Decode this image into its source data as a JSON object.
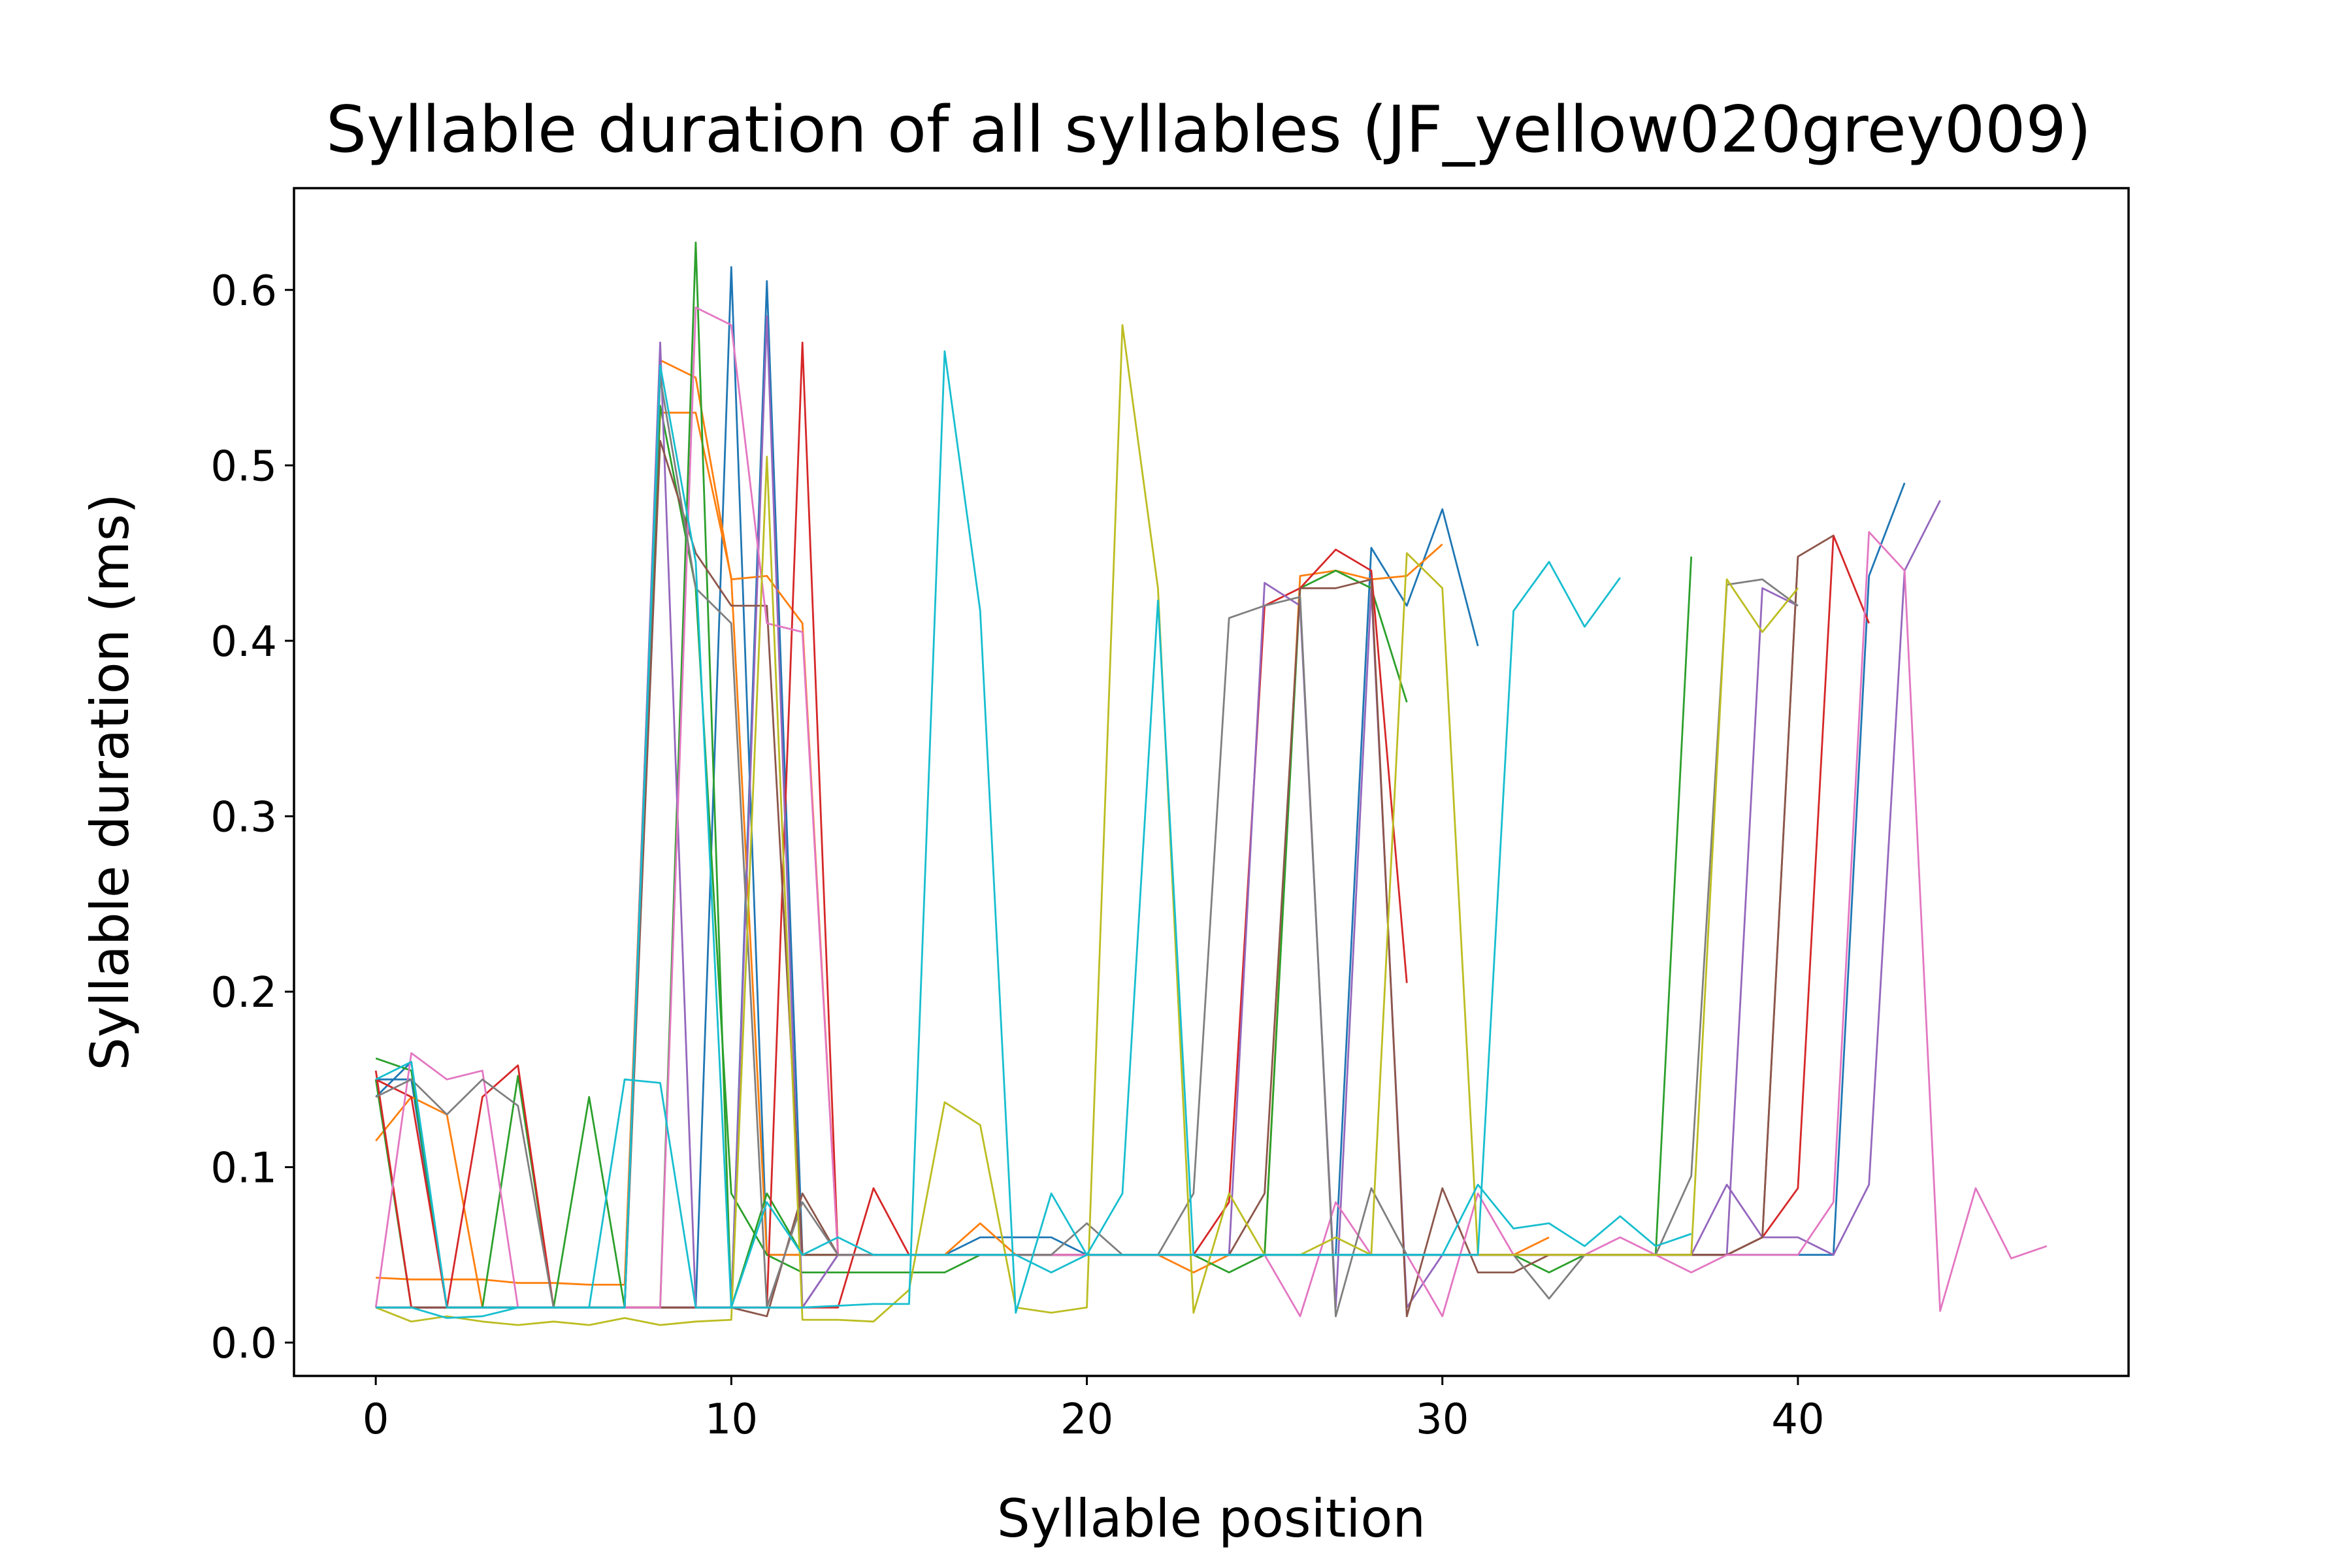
{
  "chart_data": {
    "type": "line",
    "title": "Syllable duration of all syllables (JF_yellow020grey009)",
    "xlabel": "Syllable position",
    "ylabel": "Syllable duration (ms)",
    "xlim": [
      -2.3,
      49.3
    ],
    "ylim": [
      -0.019,
      0.658
    ],
    "xticks": [
      0,
      10,
      20,
      30,
      40
    ],
    "yticks": [
      0.0,
      0.1,
      0.2,
      0.3,
      0.4,
      0.5,
      0.6
    ],
    "ytick_labels": [
      "0.0",
      "0.1",
      "0.2",
      "0.3",
      "0.4",
      "0.5",
      "0.6"
    ],
    "grid": false,
    "legend": false,
    "series": [
      {
        "color": "#1f77b4",
        "values": [
          0.15,
          0.15,
          0.02,
          0.02,
          0.02,
          0.02,
          0.02,
          0.02,
          0.02,
          0.02,
          0.613,
          0.05,
          0.05,
          0.05,
          0.05,
          0.05,
          0.05,
          0.06,
          0.06,
          0.06,
          0.05,
          0.05,
          0.05,
          0.05,
          0.05,
          0.05,
          0.05,
          0.05,
          0.453,
          0.42,
          0.475,
          0.397
        ]
      },
      {
        "color": "#1f77b4",
        "values": [
          0.14,
          0.16,
          0.02,
          0.02,
          0.02,
          0.02,
          0.02,
          0.02,
          0.02,
          0.02,
          0.02,
          0.605,
          0.05,
          0.05,
          0.05,
          0.05,
          0.05,
          0.05,
          0.05,
          0.05,
          0.05,
          0.05,
          0.05,
          0.05,
          0.05,
          0.05,
          0.05,
          0.05,
          0.05,
          0.05,
          0.05,
          0.05,
          0.05,
          0.05,
          0.05,
          0.05,
          0.05,
          0.05,
          0.05,
          0.05,
          0.05,
          0.05,
          0.437,
          0.49
        ]
      },
      {
        "color": "#ff7f0e",
        "values": [
          0.037,
          0.036,
          0.036,
          0.036,
          0.034,
          0.034,
          0.033,
          0.033,
          0.56,
          0.55,
          0.435,
          0.437,
          0.41,
          0.05,
          0.05,
          0.05,
          0.05,
          0.068,
          0.05,
          0.05,
          0.05,
          0.05,
          0.05,
          0.05,
          0.05,
          0.05,
          0.437,
          0.44,
          0.435,
          0.437,
          0.455
        ]
      },
      {
        "color": "#ff7f0e",
        "values": [
          0.115,
          0.14,
          0.13,
          0.02,
          0.02,
          0.02,
          0.02,
          0.02,
          0.53,
          0.53,
          0.436,
          0.05,
          0.05,
          0.05,
          0.05,
          0.05,
          0.05,
          0.05,
          0.05,
          0.05,
          0.05,
          0.05,
          0.05,
          0.04,
          0.05,
          0.05,
          0.05,
          0.05,
          0.05,
          0.05,
          0.05,
          0.05,
          0.05,
          0.06
        ]
      },
      {
        "color": "#2ca02c",
        "values": [
          0.162,
          0.155,
          0.02,
          0.02,
          0.02,
          0.02,
          0.14,
          0.02,
          0.534,
          0.43,
          0.085,
          0.05,
          0.04,
          0.04,
          0.04,
          0.04,
          0.04,
          0.05,
          0.05,
          0.05,
          0.05,
          0.05,
          0.05,
          0.05,
          0.04,
          0.05,
          0.43,
          0.44,
          0.43,
          0.365
        ]
      },
      {
        "color": "#2ca02c",
        "values": [
          0.15,
          0.02,
          0.02,
          0.02,
          0.152,
          0.02,
          0.02,
          0.02,
          0.02,
          0.627,
          0.02,
          0.085,
          0.05,
          0.05,
          0.05,
          0.05,
          0.05,
          0.05,
          0.05,
          0.05,
          0.05,
          0.05,
          0.05,
          0.05,
          0.05,
          0.05,
          0.05,
          0.05,
          0.05,
          0.05,
          0.05,
          0.05,
          0.05,
          0.04,
          0.05,
          0.05,
          0.05,
          0.448
        ]
      },
      {
        "color": "#d62728",
        "values": [
          0.155,
          0.02,
          0.02,
          0.14,
          0.158,
          0.02,
          0.02,
          0.02,
          0.02,
          0.02,
          0.02,
          0.02,
          0.57,
          0.05,
          0.05,
          0.05,
          0.05,
          0.05,
          0.05,
          0.05,
          0.05,
          0.05,
          0.05,
          0.05,
          0.08,
          0.42,
          0.43,
          0.452,
          0.44,
          0.205
        ]
      },
      {
        "color": "#d62728",
        "values": [
          0.15,
          0.14,
          0.02,
          0.02,
          0.02,
          0.02,
          0.02,
          0.02,
          0.02,
          0.02,
          0.02,
          0.02,
          0.02,
          0.02,
          0.088,
          0.05,
          0.05,
          0.05,
          0.05,
          0.05,
          0.05,
          0.05,
          0.05,
          0.05,
          0.05,
          0.05,
          0.05,
          0.05,
          0.05,
          0.05,
          0.05,
          0.05,
          0.05,
          0.05,
          0.05,
          0.05,
          0.05,
          0.05,
          0.05,
          0.06,
          0.088,
          0.46,
          0.41
        ]
      },
      {
        "color": "#9467bd",
        "values": [
          0.02,
          0.02,
          0.02,
          0.02,
          0.02,
          0.02,
          0.02,
          0.02,
          0.57,
          0.02,
          0.02,
          0.585,
          0.02,
          0.05,
          0.05,
          0.05,
          0.05,
          0.05,
          0.05,
          0.05,
          0.05,
          0.05,
          0.05,
          0.05,
          0.05,
          0.433,
          0.42,
          0.02,
          0.43,
          0.02,
          0.05,
          0.05,
          0.05,
          0.05,
          0.05,
          0.05,
          0.05,
          0.05,
          0.05,
          0.43,
          0.42
        ]
      },
      {
        "color": "#9467bd",
        "values": [
          0.02,
          0.02,
          0.02,
          0.02,
          0.02,
          0.02,
          0.02,
          0.02,
          0.02,
          0.02,
          0.02,
          0.02,
          0.02,
          0.05,
          0.05,
          0.05,
          0.05,
          0.05,
          0.05,
          0.05,
          0.05,
          0.05,
          0.05,
          0.05,
          0.05,
          0.05,
          0.05,
          0.05,
          0.05,
          0.05,
          0.05,
          0.05,
          0.05,
          0.05,
          0.05,
          0.05,
          0.05,
          0.05,
          0.09,
          0.06,
          0.06,
          0.05,
          0.09,
          0.44,
          0.48
        ]
      },
      {
        "color": "#8c564b",
        "values": [
          0.02,
          0.02,
          0.02,
          0.02,
          0.02,
          0.02,
          0.02,
          0.02,
          0.514,
          0.45,
          0.42,
          0.42,
          0.05,
          0.05,
          0.05,
          0.05,
          0.05,
          0.05,
          0.05,
          0.05,
          0.05,
          0.05,
          0.05,
          0.05,
          0.05,
          0.085,
          0.43,
          0.43,
          0.435,
          0.015,
          0.088,
          0.04,
          0.04,
          0.05,
          0.05,
          0.05,
          0.05,
          0.05,
          0.05,
          0.06,
          0.448,
          0.46
        ]
      },
      {
        "color": "#8c564b",
        "values": [
          0.02,
          0.02,
          0.02,
          0.02,
          0.02,
          0.02,
          0.02,
          0.02,
          0.02,
          0.02,
          0.02,
          0.015,
          0.085,
          0.05,
          0.05,
          0.05,
          0.05,
          0.05,
          0.05,
          0.05,
          0.05,
          0.05,
          0.05,
          0.05,
          0.05,
          0.05,
          0.05,
          0.05,
          0.05,
          0.05,
          0.05,
          0.05,
          0.05,
          0.05,
          0.05,
          0.05,
          0.05,
          0.05,
          0.05,
          0.06,
          0.448
        ]
      },
      {
        "color": "#e377c2",
        "values": [
          0.02,
          0.165,
          0.15,
          0.155,
          0.02,
          0.02,
          0.02,
          0.02,
          0.02,
          0.59,
          0.58,
          0.41,
          0.405,
          0.05,
          0.05,
          0.05,
          0.05,
          0.05,
          0.05,
          0.05,
          0.05,
          0.05,
          0.05,
          0.05,
          0.05,
          0.05,
          0.015,
          0.08,
          0.05,
          0.05,
          0.015,
          0.085,
          0.05,
          0.05,
          0.05,
          0.06,
          0.05,
          0.04,
          0.05,
          0.05,
          0.05,
          0.08,
          0.462,
          0.44,
          0.018,
          0.088,
          0.048,
          0.055
        ]
      },
      {
        "color": "#7f7f7f",
        "values": [
          0.14,
          0.15,
          0.13,
          0.15,
          0.135,
          0.02,
          0.02,
          0.02,
          0.55,
          0.43,
          0.41,
          0.02,
          0.08,
          0.05,
          0.05,
          0.05,
          0.05,
          0.05,
          0.05,
          0.05,
          0.068,
          0.05,
          0.05,
          0.085,
          0.413,
          0.42,
          0.425,
          0.015,
          0.088,
          0.05,
          0.05,
          0.05,
          0.05,
          0.025,
          0.05,
          0.05,
          0.05,
          0.095,
          0.432,
          0.435,
          0.42
        ]
      },
      {
        "color": "#bcbd22",
        "values": [
          0.02,
          0.012,
          0.015,
          0.012,
          0.01,
          0.012,
          0.01,
          0.014,
          0.01,
          0.012,
          0.013,
          0.505,
          0.013,
          0.013,
          0.012,
          0.03,
          0.137,
          0.124,
          0.02,
          0.017,
          0.02,
          0.58,
          0.43,
          0.017,
          0.085,
          0.05,
          0.05,
          0.06,
          0.05,
          0.45,
          0.43,
          0.05,
          0.05,
          0.05,
          0.05,
          0.05,
          0.05,
          0.05,
          0.435,
          0.405,
          0.43
        ]
      },
      {
        "color": "#17becf",
        "values": [
          0.02,
          0.02,
          0.014,
          0.015,
          0.02,
          0.02,
          0.02,
          0.15,
          0.148,
          0.02,
          0.02,
          0.02,
          0.02,
          0.021,
          0.022,
          0.022,
          0.565,
          0.417,
          0.017,
          0.085,
          0.05,
          0.085,
          0.423,
          0.05,
          0.05,
          0.05,
          0.05,
          0.05,
          0.05,
          0.05,
          0.05,
          0.05,
          0.417,
          0.445,
          0.408,
          0.436
        ]
      },
      {
        "color": "#17becf",
        "values": [
          0.15,
          0.16,
          0.02,
          0.02,
          0.02,
          0.02,
          0.02,
          0.02,
          0.557,
          0.445,
          0.02,
          0.08,
          0.05,
          0.06,
          0.05,
          0.05,
          0.05,
          0.05,
          0.05,
          0.04,
          0.05,
          0.05,
          0.05,
          0.05,
          0.05,
          0.05,
          0.05,
          0.05,
          0.05,
          0.05,
          0.05,
          0.09,
          0.065,
          0.068,
          0.055,
          0.072,
          0.055,
          0.062
        ]
      }
    ]
  }
}
